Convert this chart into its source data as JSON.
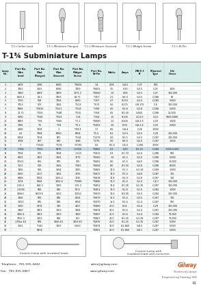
{
  "title": "T-1¾ Subminiature Lamps",
  "page_num": "41",
  "catalog": "Engineering Catalog 169",
  "company": "Gilway",
  "company_sub": "Technical Lamps",
  "phone": "Telephone:  781-935-4442",
  "fax": "Fax:  781-935-5867",
  "email": "sales@gilway.com",
  "website": "www.gilway.com",
  "header_bg": "#d6ede8",
  "table_header_bg": "#d6ede8",
  "bg_color": "#ffffff",
  "lamp_labels": [
    "T-1¾ Inline Lead",
    "T-1¾ Miniature Flanged",
    "T-1¾ Miniature Grooved",
    "T-1¾ Midget Screw",
    "T-1¾ Bi-Pin"
  ],
  "rows": [
    [
      "1",
      "4109",
      "1086",
      "6680",
      "T6604",
      "1.4",
      "0.08",
      "G-4.5",
      "C-2F",
      "500"
    ],
    [
      "2",
      "1763",
      "1665",
      "6086",
      "1769",
      "T6601",
      "3.5",
      "0.30",
      "G-3.5",
      "C-2F",
      "1000"
    ],
    [
      "3",
      "1960",
      "2969",
      "2969",
      "1171.2",
      "T6660",
      "1.0",
      "0.08",
      "G-3.5",
      "C-2F",
      "100,000"
    ],
    [
      "4",
      "6063.1",
      "64.3",
      "1763",
      "68.71",
      "T357",
      "2.1",
      "8-4.0",
      "G-3.5",
      "C-288",
      "80"
    ],
    [
      "5",
      "1730",
      "558",
      "1764",
      "6060",
      "T357",
      "2.7",
      "8-150",
      "G-3.4",
      "C-280",
      "5,000"
    ],
    [
      "6",
      "1753",
      "573",
      "1862",
      "T513",
      "T573",
      "5.0",
      "8-175",
      "G-8.175",
      "C-8",
      "100,000"
    ],
    [
      "7",
      "8166",
      "T5015",
      "T54.5",
      "T514",
      "T358",
      "5.0",
      "8-3.8",
      "G-3.8",
      "C-288",
      "5,000"
    ],
    [
      "8",
      "11.71",
      "T553",
      "T548",
      "T515",
      "T354",
      "4.5",
      "8-5.50",
      "G-550",
      "C-288",
      "25,000"
    ],
    [
      "9",
      "5390",
      "T558",
      "T553",
      "1.14",
      "T154",
      "1.5",
      "8-100",
      "G-13.0",
      "G-13",
      "5000-5000"
    ],
    [
      "10",
      "8383",
      "T59",
      "T566",
      "T1.1",
      "T6680",
      "1.2",
      "8-300",
      "G-8-3.5",
      "C-20",
      "1,000"
    ],
    [
      "11",
      "1785",
      "T5",
      "T59",
      "T5-1",
      "T5001",
      "1.0",
      "8-38",
      "G-8-3.4",
      "C-20",
      "5,000"
    ],
    [
      "12",
      "4186",
      "1194",
      "1",
      "T09.4",
      "1.7",
      "8-5",
      "G-8-4",
      "C-28",
      "1,000"
    ],
    [
      "13",
      "4.1",
      "7384",
      "8760",
      "8764",
      "T5.5",
      "8-1",
      "G-3.5",
      "G-3.5",
      "C-28",
      "100,000"
    ],
    [
      "14",
      "5004",
      "7134",
      "871",
      "T534",
      "T1279",
      "5.0",
      "8-3.5",
      "G-3.5",
      "C-287",
      "100,000"
    ],
    [
      "15",
      "1798",
      "837",
      "870",
      "1848",
      "T279",
      "5.0",
      "8-6.0",
      "G-5.0",
      "C-287",
      "1,000"
    ],
    [
      "16",
      "7",
      "T1541",
      "T574",
      "T5791",
      "5.0",
      "8-5.0",
      "G-5.0",
      "C-284",
      "3,000"
    ],
    [
      "17",
      "3.764",
      "T553",
      "5975",
      "1.1744",
      "T6841",
      "6.3",
      "0.20",
      "8-3.15",
      "C-284",
      "3,100-5,000"
    ],
    [
      "18",
      "1794",
      "571",
      "1194",
      "1.119",
      "T5813",
      "6.3",
      "8-1.70",
      "G-2.6",
      "C-288",
      "500"
    ],
    [
      "19",
      "6361",
      "1861",
      "1861",
      "1271",
      "T6560",
      "1.0",
      "8-1.3",
      "G-3.0",
      "C-288",
      "5,000"
    ],
    [
      "20",
      "10521",
      "881",
      "875",
      "575",
      "T6681",
      "8.0",
      "8-1.5",
      "G-4.0",
      "C-288",
      "10,000"
    ],
    [
      "21",
      "1117",
      "549",
      "1666",
      "T681",
      "T6608",
      "8.0",
      "8-3.50",
      "G-3.8",
      "C-288",
      "8,000"
    ],
    [
      "22",
      "1866",
      "566",
      "1664",
      "1183",
      "T6881",
      "11.0",
      "0-1.3",
      "G-3.34",
      "C-289",
      "1,000"
    ],
    [
      "23",
      "6660",
      "1617",
      "1881",
      "1295",
      "T6817",
      "11.0",
      "8-1.4",
      "G-4.8",
      "C-287",
      "100"
    ],
    [
      "24",
      "8986",
      "5004",
      "1565.2",
      "1295",
      "T6818",
      "11.4",
      "8-1.0",
      "G-1.8",
      "C-287",
      "100"
    ],
    [
      "25",
      "1174",
      "5664",
      "1154.4",
      "T5086",
      "T6886",
      "12.0",
      "8-1.4",
      "G-1.4",
      "C-8.7",
      "100,000"
    ],
    [
      "26",
      "2.18.3",
      "668.3",
      "1065",
      "1.35.3",
      "T6852",
      "11.4",
      "8-1.28",
      "G-1.35",
      "C-287",
      "100,000"
    ],
    [
      "27",
      "1.1094",
      "836",
      "890",
      "67.8",
      "T6851",
      "14.0",
      "8-1.8",
      "G-1.6",
      "C-284",
      "1,000"
    ],
    [
      "28",
      "31663",
      "8819.6",
      "1661",
      "14163",
      "T6819",
      "14.6",
      "8-9.00",
      "G-5.0",
      "C-284",
      "100,000"
    ],
    [
      "29",
      "3466",
      "876",
      "846",
      "6154",
      "T6870",
      "16.5",
      "8-1.4",
      "G-3.5",
      "C-287",
      "100"
    ],
    [
      "30",
      "3.823",
      "876",
      "846",
      "6154",
      "T6870",
      "16.5",
      "8-1.4",
      "G-1.4",
      "C-287",
      "500"
    ],
    [
      "31",
      "1660",
      "3874",
      "349",
      "4157",
      "T6880",
      "20.0",
      "8-14",
      "G-3.4",
      "C-28",
      "100,000"
    ],
    [
      "32",
      "1960",
      "3863",
      "1063",
      "1364",
      "T6874",
      "30.0",
      "8-3.4",
      "G-3.4",
      "C-287",
      "100,000"
    ],
    [
      "33",
      "1160.1",
      "3863",
      "1063",
      "1360",
      "T6867",
      "25.0",
      "8-3.4",
      "G-3.4",
      "C-284",
      "75,000"
    ],
    [
      "34",
      "1762.3",
      "3663",
      "834",
      "861",
      "T6867",
      "28.0",
      "8-1.25",
      "G-1.28",
      "C-287",
      "75,000"
    ],
    [
      "35",
      "175ba E3",
      "878",
      "5346-E3",
      "1359.E3",
      "T6876",
      "28.0",
      "8-1.25",
      "G-1.35",
      "C-287",
      "5,000"
    ],
    [
      "36",
      "3661",
      "T341",
      "1263",
      "5,463",
      "T6874",
      "30.0",
      "8-1,860",
      "G-8.5",
      "C-287",
      "5,000"
    ],
    [
      "37",
      "",
      "R416",
      "",
      "",
      "T6801",
      "40.0",
      "8-1.860",
      "G-8.1",
      "C-287",
      "5,000"
    ]
  ],
  "highlight_row": 17,
  "highlight_color": "#c8dce8",
  "footer_box1_text": "Custom Lamp with insulated leads.",
  "footer_box2_text": "Custom Lamp with\ninsulated leads and connector.",
  "gilway_orange": "#d4551a",
  "table_line_color": "#aaaaaa",
  "row_alt_color": "#f0f0f0"
}
